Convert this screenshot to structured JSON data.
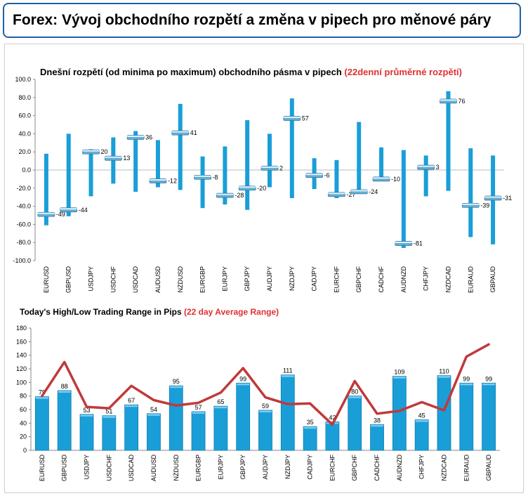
{
  "header": {
    "title": "Forex: Vývoj obchodního rozpětí a změna v pipech pro měnové páry"
  },
  "chart_data": [
    {
      "type": "bar",
      "title": "Dnešní rozpětí (od minima po maximum) obchodního pásma v pipech",
      "title_accent": "(22denní průměrné rozpětí)",
      "ylim": [
        -100,
        100
      ],
      "ytick_step": 20,
      "ytick_labels": [
        "100.0",
        "80.0",
        "60.0",
        "40.0",
        "20.0",
        "0.0",
        "-20.0",
        "-40.0",
        "-60.0",
        "-80.0",
        "-100.0"
      ],
      "categories": [
        "EURUSD",
        "GBPUSD",
        "USDJPY",
        "USDCHF",
        "USDCAD",
        "AUDUSD",
        "NZDUSD",
        "EURGBP",
        "EURJPY",
        "GBPJPY",
        "AUDJPY",
        "NZDJPY",
        "CADJPY",
        "EURCHF",
        "GBPCHF",
        "CADCHF",
        "AUDNZD",
        "CHFJPY",
        "NZDCAD",
        "EURAUD",
        "GBPAUD"
      ],
      "series": [
        {
          "name": "high",
          "values": [
            18,
            40,
            23,
            36,
            43,
            33,
            73,
            15,
            26,
            55,
            40,
            79,
            13,
            11,
            53,
            25,
            22,
            16,
            87,
            24,
            16
          ]
        },
        {
          "name": "low",
          "values": [
            -61,
            -51,
            -29,
            -15,
            -24,
            -19,
            -22,
            -42,
            -38,
            -44,
            -19,
            -31,
            -21,
            -31,
            -25,
            -11,
            -86,
            -29,
            -23,
            -74,
            -82
          ]
        },
        {
          "name": "current",
          "values": [
            -49,
            -44,
            20,
            13,
            36,
            -12,
            41,
            -8,
            -28,
            -20,
            2,
            57,
            -6,
            -27,
            -24,
            -10,
            -81,
            3,
            76,
            -39,
            -31
          ]
        }
      ],
      "data_labels": [
        "-49",
        "-44",
        "20",
        "13",
        "36",
        "-12",
        "41",
        "-8",
        "-28",
        "-20",
        "2",
        "57",
        "-6",
        "-27",
        "-24",
        "-10",
        "-81",
        "3",
        "76",
        "-39",
        "-31"
      ]
    },
    {
      "type": "bar",
      "title": "Today's High/Low Trading Range in Pips",
      "title_accent": "(22 day Average Range)",
      "ylim": [
        0,
        180
      ],
      "ytick_step": 20,
      "ytick_labels": [
        "180",
        "160",
        "140",
        "120",
        "100",
        "80",
        "60",
        "40",
        "20",
        "0"
      ],
      "categories": [
        "EURUSD",
        "GBPUSD",
        "USDJPY",
        "USDCHF",
        "USDCAD",
        "AUDUSD",
        "NZDUSD",
        "EURGBP",
        "EURJPY",
        "GBPJPY",
        "AUDJPY",
        "NZDJPY",
        "CADJPY",
        "EURCHF",
        "GBPCHF",
        "CADCHF",
        "AUDNZD",
        "CHFJPY",
        "NZDCAD",
        "EURAUD",
        "GBPAUD"
      ],
      "series": [
        {
          "values": [
            79,
            88,
            53,
            51,
            67,
            54,
            95,
            57,
            65,
            99,
            59,
            111,
            35,
            42,
            80,
            38,
            109,
            45,
            110,
            99,
            99
          ]
        },
        {
          "type": "line",
          "values": [
            80,
            130,
            64,
            62,
            95,
            74,
            66,
            70,
            85,
            121,
            78,
            68,
            69,
            38,
            102,
            54,
            58,
            71,
            59,
            138,
            156
          ]
        }
      ],
      "data_labels": [
        "79",
        "88",
        "53",
        "51",
        "67",
        "54",
        "95",
        "57",
        "65",
        "99",
        "59",
        "111",
        "35",
        "42",
        "80",
        "38",
        "109",
        "45",
        "110",
        "99",
        "99"
      ]
    }
  ],
  "colors": {
    "bar": "#1a9ed8",
    "bar_dark": "#0d7fb3",
    "line": "#c0393b",
    "border": "#1f5fa8"
  }
}
